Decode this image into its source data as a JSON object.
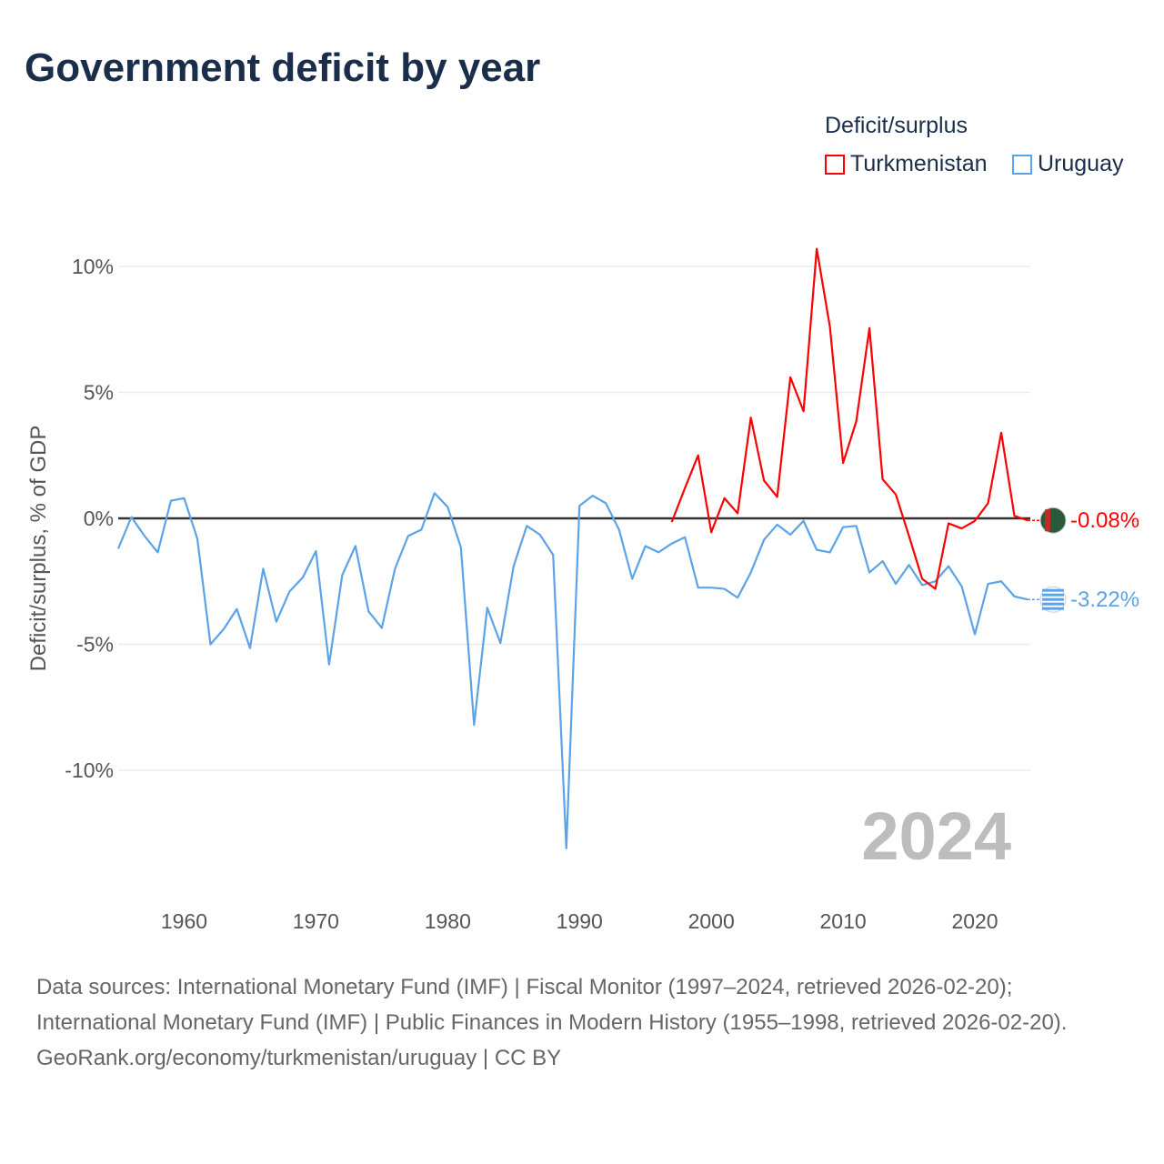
{
  "title": "Government deficit by year",
  "legend": {
    "title": "Deficit/surplus",
    "items": [
      {
        "label": "Turkmenistan",
        "color": "#ff0000"
      },
      {
        "label": "Uruguay",
        "color": "#5ba3e8"
      }
    ]
  },
  "year_label": "2024",
  "end_labels": {
    "turkmenistan": "-0.08%",
    "uruguay": "-3.22%"
  },
  "sources": {
    "line1": "Data sources: International Monetary Fund (IMF) | Fiscal Monitor (1997–2024, retrieved 2026-02-20); International Monetary Fund (IMF) | Public Finances in Modern History (1955–1998, retrieved 2026-02-20).",
    "line2": "GeoRank.org/economy/turkmenistan/uruguay | CC BY"
  },
  "chart_data": {
    "type": "line",
    "title": "Government deficit by year",
    "xlabel": "",
    "ylabel": "Deficit/surplus, % of GDP",
    "xlim": [
      1955,
      2024
    ],
    "ylim": [
      -13.5,
      11
    ],
    "xticks": [
      1960,
      1970,
      1980,
      1990,
      2000,
      2010,
      2020
    ],
    "yticks": [
      {
        "v": 10,
        "label": "10%"
      },
      {
        "v": 5,
        "label": "5%"
      },
      {
        "v": 0,
        "label": "0%"
      },
      {
        "v": -5,
        "label": "-5%"
      },
      {
        "v": -10,
        "label": "-10%"
      }
    ],
    "legend_position": "top-right",
    "series": [
      {
        "name": "Uruguay",
        "color": "#5ba3e8",
        "start": 1955,
        "values": [
          -1.2,
          0.05,
          -0.7,
          -1.35,
          0.7,
          0.8,
          -0.8,
          -5.0,
          -4.4,
          -3.6,
          -5.15,
          -2.0,
          -4.1,
          -2.9,
          -2.35,
          -1.3,
          -5.8,
          -2.25,
          -1.1,
          -3.7,
          -4.35,
          -2.0,
          -0.7,
          -0.45,
          1.0,
          0.45,
          -1.15,
          -8.2,
          -3.55,
          -4.95,
          -1.9,
          -0.3,
          -0.65,
          -1.45,
          -13.1,
          0.5,
          0.9,
          0.6,
          -0.45,
          -2.4,
          -1.1,
          -1.35,
          -1.0,
          -0.75,
          -2.75,
          -2.75,
          -2.8,
          -3.15,
          -2.15,
          -0.85,
          -0.25,
          -0.65,
          -0.1,
          -1.25,
          -1.35,
          -0.35,
          -0.3,
          -2.15,
          -1.7,
          -2.6,
          -1.85,
          -2.65,
          -2.5,
          -1.9,
          -2.7,
          -4.6,
          -2.6,
          -2.5,
          -3.1,
          -3.22
        ]
      },
      {
        "name": "Turkmenistan",
        "color": "#ff0000",
        "start": 1997,
        "values": [
          -0.15,
          1.2,
          2.5,
          -0.55,
          0.8,
          0.2,
          4.0,
          1.5,
          0.85,
          5.6,
          4.25,
          10.7,
          7.6,
          2.2,
          3.85,
          7.55,
          1.55,
          0.95,
          -0.7,
          -2.4,
          -2.8,
          -0.2,
          -0.4,
          -0.1,
          0.6,
          3.4,
          0.1,
          -0.08
        ]
      }
    ]
  }
}
